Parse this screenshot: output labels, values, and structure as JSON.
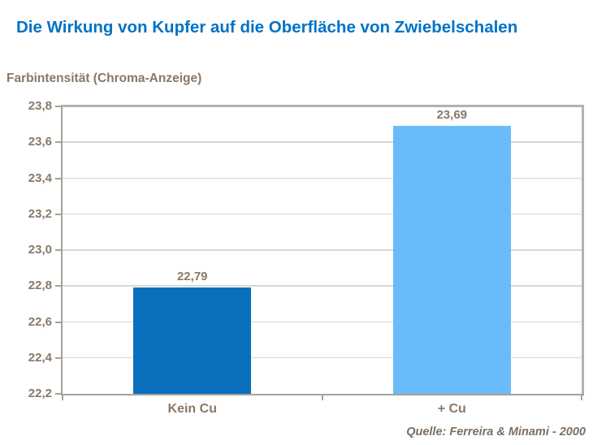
{
  "title": "Die Wirkung von Kupfer auf die Oberfläche von Zwiebelschalen",
  "axis_title": "Farbintensität (Chroma-Anzeige)",
  "source": "Quelle: Ferreira & Minami - 2000",
  "colors": {
    "title": "#0072C6",
    "label": "#8A7866",
    "source": "#7D6F62",
    "axis": "#A5A19C",
    "plot_border": "#B4B1AE",
    "gridline": "#DCD7D1"
  },
  "chart_data": {
    "type": "bar",
    "title": "Die Wirkung von Kupfer auf die Oberfläche von Zwiebelschalen",
    "ylabel": "Farbintensität (Chroma-Anzeige)",
    "xlabel": "",
    "categories": [
      "Kein Cu",
      "+ Cu"
    ],
    "values": [
      22.79,
      23.69
    ],
    "value_labels": [
      "22,79",
      "23,69"
    ],
    "bar_colors": [
      "#0A70BE",
      "#69BCF9"
    ],
    "ylim": [
      22.2,
      23.8
    ],
    "ytick_step": 0.2,
    "ytick_labels": [
      "22,2",
      "22,4",
      "22,6",
      "22,8",
      "23,0",
      "23,2",
      "23,4",
      "23,6",
      "23,8"
    ],
    "grid": true,
    "legend": false,
    "annotation": "Quelle: Ferreira & Minami - 2000"
  }
}
